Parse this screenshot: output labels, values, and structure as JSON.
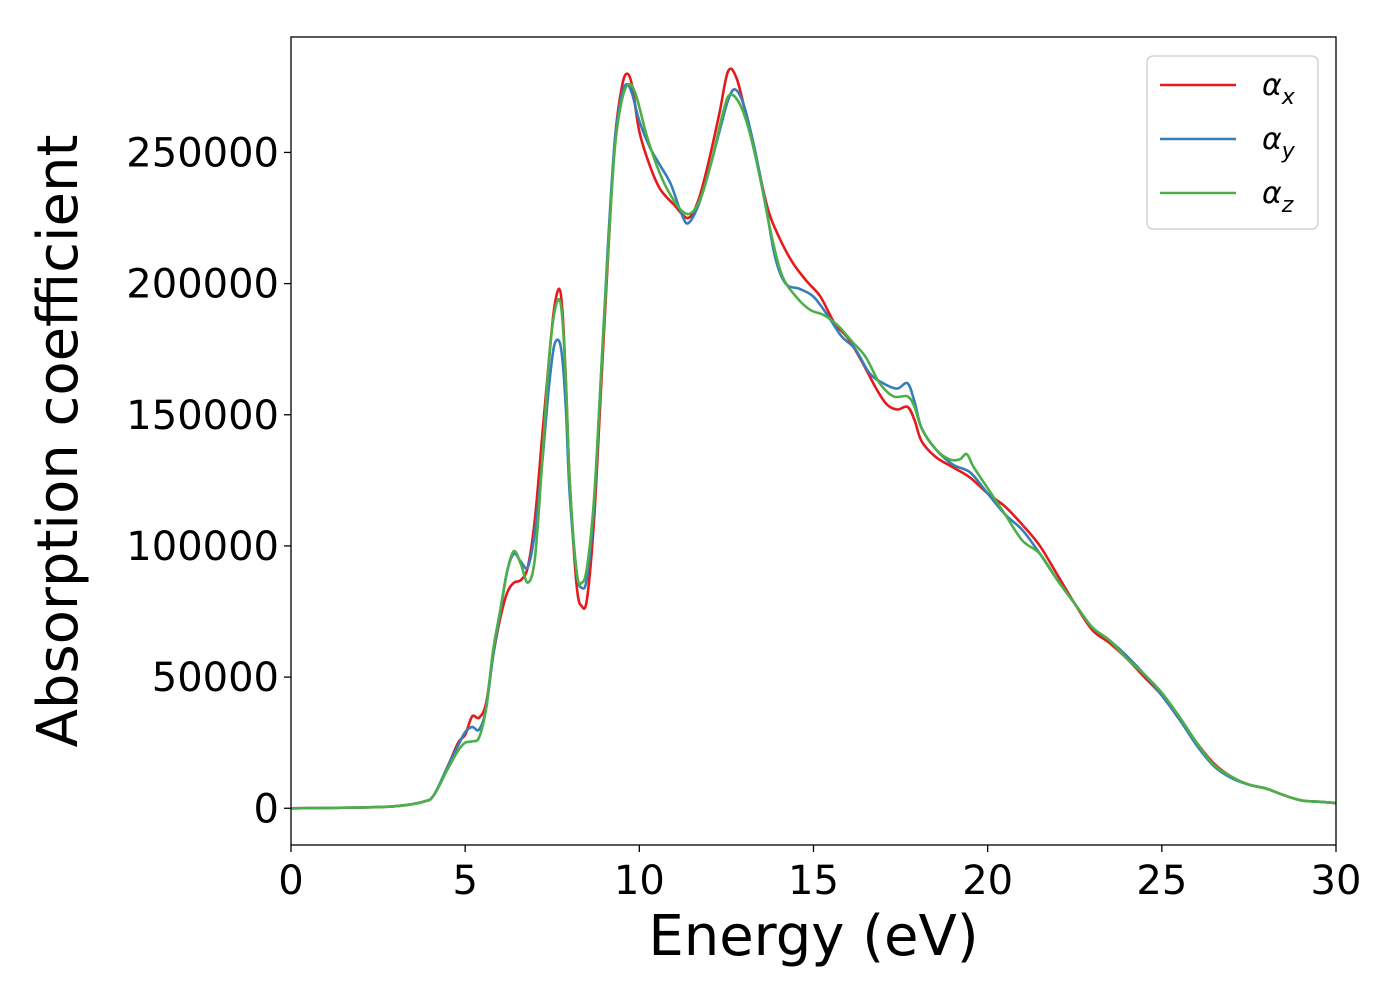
{
  "chart_data": {
    "type": "line",
    "xlabel": "Energy (eV)",
    "ylabel": "Absorption coefficient",
    "xlim": [
      0,
      30
    ],
    "ylim": [
      -14000,
      294000
    ],
    "x_ticks": [
      0,
      5,
      10,
      15,
      20,
      25,
      30
    ],
    "x_tick_labels": [
      "0",
      "5",
      "10",
      "15",
      "20",
      "25",
      "30"
    ],
    "y_ticks": [
      0,
      50000,
      100000,
      150000,
      200000,
      250000
    ],
    "y_tick_labels": [
      "0",
      "50000",
      "100000",
      "150000",
      "200000",
      "250000"
    ],
    "grid": false,
    "legend_position": "top-right",
    "series": [
      {
        "name": "αx",
        "legend_base": "α",
        "legend_sub": "x",
        "color": "#e41a1c",
        "points": [
          [
            0,
            0
          ],
          [
            2,
            300
          ],
          [
            3,
            800
          ],
          [
            3.8,
            2500
          ],
          [
            4.1,
            5000
          ],
          [
            4.5,
            16000
          ],
          [
            4.8,
            25000
          ],
          [
            5.0,
            28000
          ],
          [
            5.2,
            35000
          ],
          [
            5.4,
            34500
          ],
          [
            5.6,
            40000
          ],
          [
            5.8,
            58000
          ],
          [
            6.0,
            72000
          ],
          [
            6.2,
            82000
          ],
          [
            6.4,
            86000
          ],
          [
            6.6,
            87000
          ],
          [
            6.8,
            92000
          ],
          [
            7.0,
            110000
          ],
          [
            7.2,
            140000
          ],
          [
            7.4,
            170000
          ],
          [
            7.55,
            190000
          ],
          [
            7.7,
            198000
          ],
          [
            7.8,
            188000
          ],
          [
            7.9,
            160000
          ],
          [
            8.0,
            125000
          ],
          [
            8.2,
            85000
          ],
          [
            8.35,
            77000
          ],
          [
            8.5,
            80000
          ],
          [
            8.7,
            110000
          ],
          [
            8.9,
            160000
          ],
          [
            9.1,
            210000
          ],
          [
            9.3,
            255000
          ],
          [
            9.5,
            275000
          ],
          [
            9.65,
            280000
          ],
          [
            9.8,
            275000
          ],
          [
            10.0,
            258000
          ],
          [
            10.3,
            245000
          ],
          [
            10.6,
            236000
          ],
          [
            11.0,
            230000
          ],
          [
            11.4,
            225000
          ],
          [
            11.7,
            232000
          ],
          [
            12.0,
            247000
          ],
          [
            12.3,
            265000
          ],
          [
            12.55,
            281000
          ],
          [
            12.8,
            278000
          ],
          [
            13.1,
            262000
          ],
          [
            13.4,
            245000
          ],
          [
            13.7,
            228000
          ],
          [
            14.0,
            218000
          ],
          [
            14.4,
            208000
          ],
          [
            14.8,
            201000
          ],
          [
            15.2,
            195000
          ],
          [
            15.6,
            185000
          ],
          [
            16.0,
            179000
          ],
          [
            16.4,
            170000
          ],
          [
            16.8,
            160000
          ],
          [
            17.1,
            154000
          ],
          [
            17.4,
            152000
          ],
          [
            17.7,
            153000
          ],
          [
            17.9,
            148000
          ],
          [
            18.1,
            140000
          ],
          [
            18.5,
            134000
          ],
          [
            19.0,
            130000
          ],
          [
            19.5,
            126000
          ],
          [
            20.0,
            120000
          ],
          [
            20.5,
            115000
          ],
          [
            21.0,
            108000
          ],
          [
            21.5,
            100000
          ],
          [
            22.0,
            89000
          ],
          [
            22.5,
            78000
          ],
          [
            23.0,
            68000
          ],
          [
            23.5,
            63000
          ],
          [
            24.0,
            57000
          ],
          [
            24.5,
            50000
          ],
          [
            25.0,
            43000
          ],
          [
            25.5,
            34000
          ],
          [
            26.0,
            25000
          ],
          [
            26.5,
            17000
          ],
          [
            27.0,
            12000
          ],
          [
            27.5,
            9000
          ],
          [
            28.0,
            7500
          ],
          [
            28.5,
            5000
          ],
          [
            29.0,
            3000
          ],
          [
            29.5,
            2500
          ],
          [
            30,
            2000
          ]
        ]
      },
      {
        "name": "αy",
        "legend_base": "α",
        "legend_sub": "y",
        "color": "#377eb8",
        "points": [
          [
            0,
            0
          ],
          [
            2,
            300
          ],
          [
            3,
            800
          ],
          [
            3.8,
            2500
          ],
          [
            4.1,
            5000
          ],
          [
            4.5,
            16000
          ],
          [
            4.8,
            24000
          ],
          [
            5.0,
            29000
          ],
          [
            5.2,
            31000
          ],
          [
            5.4,
            30000
          ],
          [
            5.6,
            38000
          ],
          [
            5.8,
            58000
          ],
          [
            6.0,
            74000
          ],
          [
            6.2,
            90000
          ],
          [
            6.4,
            97000
          ],
          [
            6.6,
            94000
          ],
          [
            6.8,
            92000
          ],
          [
            7.0,
            105000
          ],
          [
            7.2,
            130000
          ],
          [
            7.4,
            160000
          ],
          [
            7.55,
            176000
          ],
          [
            7.7,
            178000
          ],
          [
            7.8,
            170000
          ],
          [
            7.9,
            150000
          ],
          [
            8.0,
            120000
          ],
          [
            8.2,
            90000
          ],
          [
            8.35,
            84000
          ],
          [
            8.5,
            88000
          ],
          [
            8.7,
            115000
          ],
          [
            8.9,
            165000
          ],
          [
            9.1,
            215000
          ],
          [
            9.3,
            255000
          ],
          [
            9.5,
            272000
          ],
          [
            9.65,
            276000
          ],
          [
            9.8,
            272000
          ],
          [
            10.0,
            262000
          ],
          [
            10.3,
            252000
          ],
          [
            10.6,
            245000
          ],
          [
            10.9,
            238000
          ],
          [
            11.2,
            227000
          ],
          [
            11.4,
            223000
          ],
          [
            11.7,
            230000
          ],
          [
            12.0,
            243000
          ],
          [
            12.3,
            258000
          ],
          [
            12.55,
            270000
          ],
          [
            12.75,
            274000
          ],
          [
            13.0,
            268000
          ],
          [
            13.3,
            252000
          ],
          [
            13.6,
            232000
          ],
          [
            13.9,
            210000
          ],
          [
            14.2,
            200000
          ],
          [
            14.6,
            198000
          ],
          [
            15.0,
            195000
          ],
          [
            15.4,
            188000
          ],
          [
            15.8,
            180000
          ],
          [
            16.2,
            175000
          ],
          [
            16.6,
            166000
          ],
          [
            17.0,
            162000
          ],
          [
            17.4,
            160000
          ],
          [
            17.7,
            162000
          ],
          [
            17.9,
            155000
          ],
          [
            18.1,
            145000
          ],
          [
            18.5,
            137000
          ],
          [
            19.0,
            131000
          ],
          [
            19.5,
            128000
          ],
          [
            20.0,
            120000
          ],
          [
            20.5,
            112000
          ],
          [
            21.0,
            106000
          ],
          [
            21.5,
            97000
          ],
          [
            22.0,
            87000
          ],
          [
            22.5,
            78000
          ],
          [
            23.0,
            69000
          ],
          [
            23.5,
            64000
          ],
          [
            24.0,
            58000
          ],
          [
            24.5,
            51000
          ],
          [
            25.0,
            43000
          ],
          [
            25.5,
            34000
          ],
          [
            26.0,
            24000
          ],
          [
            26.5,
            16000
          ],
          [
            27.0,
            11500
          ],
          [
            27.5,
            9000
          ],
          [
            28.0,
            7500
          ],
          [
            28.5,
            5000
          ],
          [
            29.0,
            3000
          ],
          [
            29.5,
            2500
          ],
          [
            30,
            2000
          ]
        ]
      },
      {
        "name": "αz",
        "legend_base": "α",
        "legend_sub": "z",
        "color": "#4daf4a",
        "points": [
          [
            0,
            0
          ],
          [
            2,
            300
          ],
          [
            3,
            800
          ],
          [
            3.8,
            2500
          ],
          [
            4.1,
            5000
          ],
          [
            4.5,
            15000
          ],
          [
            4.8,
            22000
          ],
          [
            5.0,
            25000
          ],
          [
            5.2,
            25500
          ],
          [
            5.4,
            27000
          ],
          [
            5.6,
            38000
          ],
          [
            5.8,
            60000
          ],
          [
            6.0,
            75000
          ],
          [
            6.2,
            90000
          ],
          [
            6.4,
            98000
          ],
          [
            6.6,
            93000
          ],
          [
            6.8,
            86000
          ],
          [
            7.0,
            95000
          ],
          [
            7.2,
            130000
          ],
          [
            7.4,
            170000
          ],
          [
            7.55,
            188000
          ],
          [
            7.7,
            194000
          ],
          [
            7.8,
            185000
          ],
          [
            7.9,
            160000
          ],
          [
            8.0,
            125000
          ],
          [
            8.2,
            90000
          ],
          [
            8.35,
            86000
          ],
          [
            8.5,
            92000
          ],
          [
            8.7,
            118000
          ],
          [
            8.9,
            165000
          ],
          [
            9.1,
            212000
          ],
          [
            9.3,
            252000
          ],
          [
            9.5,
            270000
          ],
          [
            9.7,
            276000
          ],
          [
            9.9,
            272000
          ],
          [
            10.2,
            257000
          ],
          [
            10.5,
            245000
          ],
          [
            10.8,
            236000
          ],
          [
            11.2,
            228000
          ],
          [
            11.5,
            227000
          ],
          [
            11.8,
            234000
          ],
          [
            12.1,
            248000
          ],
          [
            12.4,
            265000
          ],
          [
            12.6,
            272000
          ],
          [
            12.9,
            268000
          ],
          [
            13.2,
            256000
          ],
          [
            13.5,
            238000
          ],
          [
            13.8,
            218000
          ],
          [
            14.1,
            203000
          ],
          [
            14.5,
            195000
          ],
          [
            14.9,
            190000
          ],
          [
            15.3,
            188000
          ],
          [
            15.7,
            184000
          ],
          [
            16.1,
            178000
          ],
          [
            16.5,
            172000
          ],
          [
            16.9,
            162000
          ],
          [
            17.3,
            157000
          ],
          [
            17.7,
            157000
          ],
          [
            17.9,
            153000
          ],
          [
            18.1,
            145000
          ],
          [
            18.5,
            137000
          ],
          [
            18.9,
            133000
          ],
          [
            19.2,
            133000
          ],
          [
            19.4,
            135000
          ],
          [
            19.6,
            130000
          ],
          [
            20.0,
            122000
          ],
          [
            20.5,
            112000
          ],
          [
            21.0,
            102000
          ],
          [
            21.5,
            97000
          ],
          [
            22.0,
            87000
          ],
          [
            22.5,
            78000
          ],
          [
            23.0,
            69000
          ],
          [
            23.5,
            64000
          ],
          [
            24.0,
            57000
          ],
          [
            24.5,
            51000
          ],
          [
            25.0,
            44000
          ],
          [
            25.5,
            35000
          ],
          [
            26.0,
            25000
          ],
          [
            26.5,
            16500
          ],
          [
            27.0,
            12000
          ],
          [
            27.5,
            9000
          ],
          [
            28.0,
            7500
          ],
          [
            28.5,
            5000
          ],
          [
            29.0,
            3000
          ],
          [
            29.5,
            2500
          ],
          [
            30,
            2000
          ]
        ]
      }
    ]
  }
}
